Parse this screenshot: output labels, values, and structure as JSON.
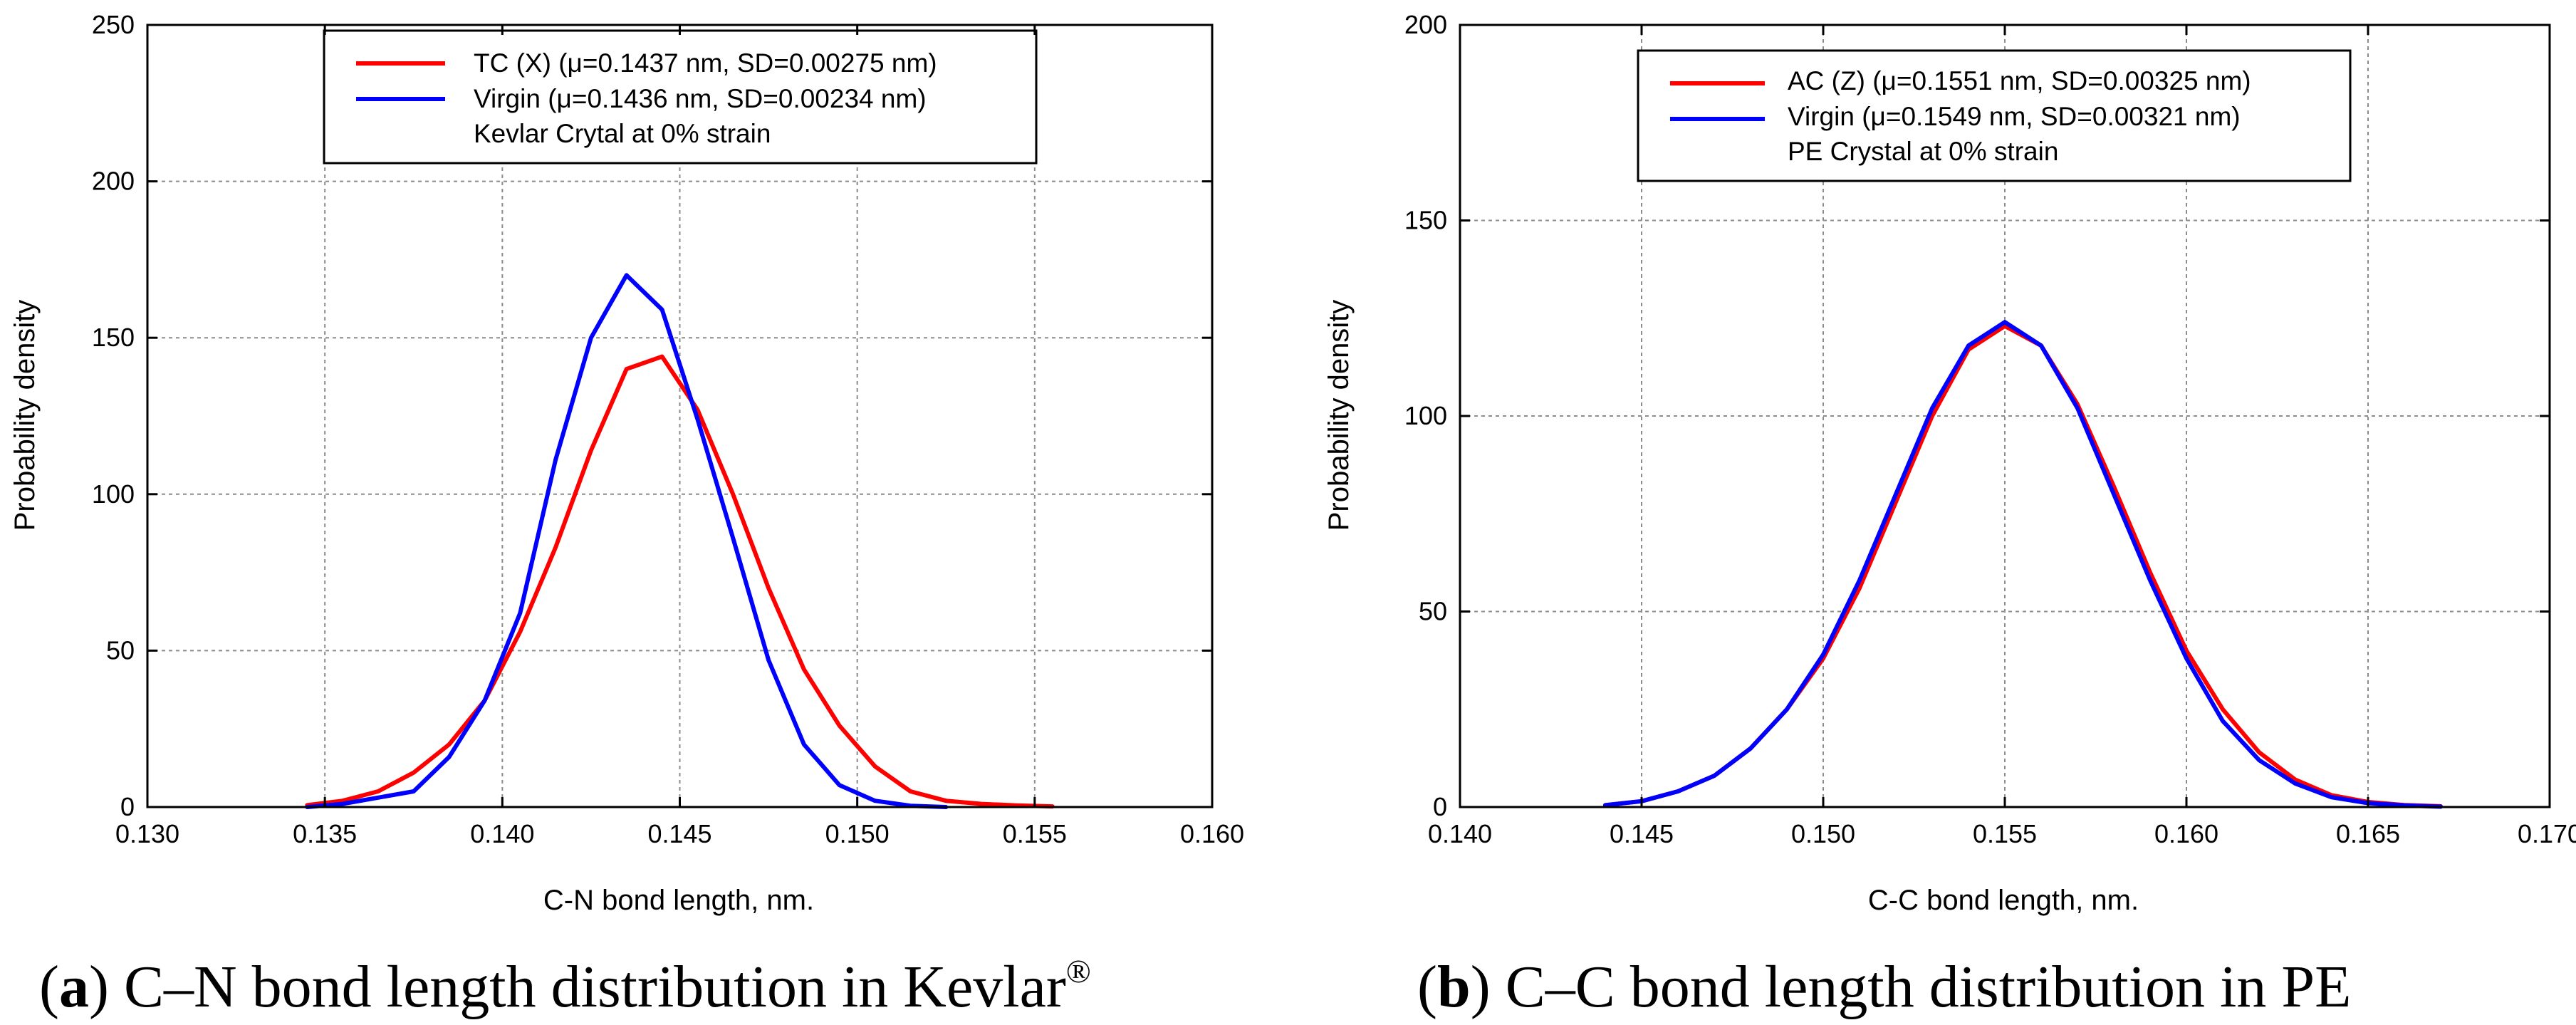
{
  "chart_data": [
    {
      "type": "line",
      "panel_id": "a",
      "xlabel": "C-N bond length, nm.",
      "ylabel": "Probability density",
      "xlim": [
        0.13,
        0.16
      ],
      "ylim": [
        0,
        250
      ],
      "xticks": [
        "0.130",
        "0.135",
        "0.140",
        "0.145",
        "0.150",
        "0.155",
        "0.160"
      ],
      "yticks": [
        "0",
        "50",
        "100",
        "150",
        "200",
        "250"
      ],
      "grid": true,
      "legend": {
        "placement": "top-center",
        "note": "Kevlar Crytal at 0% strain"
      },
      "series": [
        {
          "name": "TC (X) (μ=0.1437 nm, SD=0.00275 nm)",
          "color": "#ff0000",
          "mu": 0.1437,
          "sd": 0.00275,
          "x": [
            0.1345,
            0.1355,
            0.1365,
            0.1375,
            0.1385,
            0.1395,
            0.1405,
            0.1415,
            0.1425,
            0.1435,
            0.1445,
            0.1455,
            0.1465,
            0.1475,
            0.1485,
            0.1495,
            0.1505,
            0.1515,
            0.1525,
            0.1535,
            0.1545,
            0.1555
          ],
          "values": [
            0.6,
            2,
            5,
            11,
            20,
            34,
            56,
            83,
            114,
            140,
            144,
            127,
            100,
            70,
            44,
            26,
            13,
            5,
            2,
            1,
            0.5,
            0.2
          ]
        },
        {
          "name": "Virgin (μ=0.1436 nm, SD=0.00234 nm)",
          "color": "#0000ff",
          "mu": 0.1436,
          "sd": 0.00234,
          "x": [
            0.1345,
            0.1355,
            0.1365,
            0.1375,
            0.1385,
            0.1395,
            0.1405,
            0.1415,
            0.1425,
            0.1435,
            0.1445,
            0.1455,
            0.1465,
            0.1475,
            0.1485,
            0.1495,
            0.1505,
            0.1515,
            0.1525
          ],
          "values": [
            0,
            1,
            3,
            5,
            16,
            34,
            62,
            111,
            150,
            170,
            159,
            124,
            86,
            47,
            20,
            7,
            2,
            0.4,
            0
          ]
        }
      ]
    },
    {
      "type": "line",
      "panel_id": "b",
      "xlabel": "C-C bond length, nm.",
      "ylabel": "Probability density",
      "xlim": [
        0.14,
        0.17
      ],
      "ylim": [
        0,
        200
      ],
      "xticks": [
        "0.140",
        "0.145",
        "0.150",
        "0.155",
        "0.160",
        "0.165",
        "0.170"
      ],
      "yticks": [
        "0",
        "50",
        "100",
        "150",
        "200"
      ],
      "grid": true,
      "legend": {
        "placement": "top-center",
        "note": "PE Crystal at 0% strain"
      },
      "series": [
        {
          "name": "AC (Z) (μ=0.1551 nm, SD=0.00325 nm)",
          "color": "#ff0000",
          "mu": 0.1551,
          "sd": 0.00325,
          "x": [
            0.144,
            0.145,
            0.146,
            0.147,
            0.148,
            0.149,
            0.15,
            0.151,
            0.152,
            0.153,
            0.154,
            0.155,
            0.156,
            0.157,
            0.158,
            0.159,
            0.16,
            0.161,
            0.162,
            0.163,
            0.164,
            0.165,
            0.166,
            0.167
          ],
          "values": [
            0.5,
            1.5,
            4,
            8,
            15,
            25,
            38,
            56,
            78,
            100,
            117,
            123,
            118,
            103,
            82,
            60,
            40,
            25,
            14,
            7,
            3,
            1.3,
            0.5,
            0.2
          ]
        },
        {
          "name": "Virgin (μ=0.1549 nm, SD=0.00321 nm)",
          "color": "#0000ff",
          "mu": 0.1549,
          "sd": 0.00321,
          "x": [
            0.144,
            0.145,
            0.146,
            0.147,
            0.148,
            0.149,
            0.15,
            0.151,
            0.152,
            0.153,
            0.154,
            0.155,
            0.156,
            0.157,
            0.158,
            0.159,
            0.16,
            0.161,
            0.162,
            0.163,
            0.164,
            0.165,
            0.166,
            0.167
          ],
          "values": [
            0.5,
            1.5,
            4,
            8,
            15,
            25,
            39,
            58,
            80,
            102,
            118,
            124,
            118,
            102,
            80,
            58,
            38,
            22,
            12,
            6,
            2.5,
            1,
            0.4,
            0.1
          ]
        }
      ]
    }
  ],
  "captions": [
    {
      "label": "a",
      "text": "C–N bond length distribution in Kevlar",
      "sup": "®"
    },
    {
      "label": "b",
      "text": "C–C bond length distribution in PE",
      "sup": ""
    }
  ]
}
